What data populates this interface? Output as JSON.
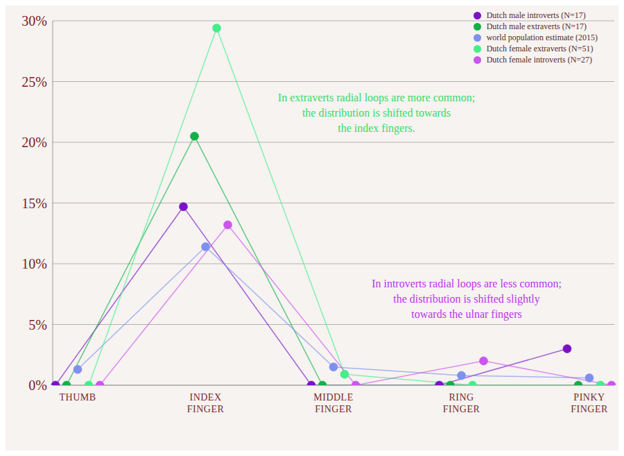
{
  "chart_data": {
    "type": "line",
    "categories": [
      "THUMB",
      "INDEX FINGER",
      "MIDDLE FINGER",
      "RING FINGER",
      "PINKY FINGER"
    ],
    "series": [
      {
        "name": "Dutch male introverts (N=17)",
        "color": "#7a12c8",
        "values": [
          0,
          14.7,
          0,
          0,
          3.0
        ]
      },
      {
        "name": "Dutch male extraverts (N=17)",
        "color": "#12b046",
        "values": [
          0,
          20.5,
          0,
          0,
          0
        ]
      },
      {
        "name": "world population estimate (2015)",
        "color": "#7f8ff0",
        "values": [
          1.3,
          11.4,
          1.5,
          0.8,
          0.6
        ]
      },
      {
        "name": "Dutch female extraverts (N=51)",
        "color": "#44ee88",
        "values": [
          0,
          29.4,
          0.9,
          0,
          0
        ]
      },
      {
        "name": "Dutch female introverts (N=27)",
        "color": "#cc55ee",
        "values": [
          0,
          13.2,
          0,
          2.0,
          0
        ]
      }
    ],
    "ylim": [
      0,
      30
    ],
    "yticks": [
      {
        "value": 0,
        "label": "0%"
      },
      {
        "value": 5,
        "label": "5%"
      },
      {
        "value": 10,
        "label": "10%"
      },
      {
        "value": 15,
        "label": "15%"
      },
      {
        "value": 20,
        "label": "20%"
      },
      {
        "value": 25,
        "label": "25%"
      },
      {
        "value": 30,
        "label": "30%"
      }
    ],
    "grid": true,
    "legend": "top-right",
    "marker": "circle",
    "annotations": [
      {
        "lines": [
          "In extraverts radial loops are more common;",
          "the distribution is shifted towards",
          "the index fingers."
        ],
        "color": "#33dd66"
      },
      {
        "lines": [
          "In introverts radial loops are less common;",
          "the distribution is shifted slightly",
          "towards the ulnar fingers"
        ],
        "color": "#bb33ee"
      }
    ]
  }
}
